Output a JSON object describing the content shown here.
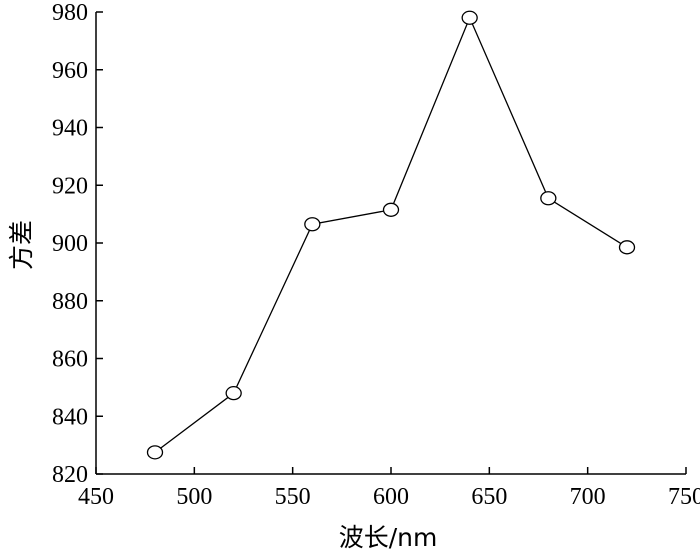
{
  "chart_data": {
    "type": "line",
    "xlabel": "波长/nm",
    "ylabel": "方差",
    "xlim": [
      450,
      750
    ],
    "ylim": [
      820,
      980
    ],
    "x_ticks": [
      450,
      500,
      550,
      600,
      650,
      700,
      750
    ],
    "y_ticks": [
      820,
      840,
      860,
      880,
      900,
      920,
      940,
      960,
      980
    ],
    "grid": false,
    "marker": "open-circle",
    "series": [
      {
        "x": [
          480,
          520,
          560,
          600,
          640,
          680,
          720
        ],
        "values": [
          827.5,
          848,
          906.5,
          911.5,
          978,
          915.5,
          898.5
        ]
      }
    ],
    "colors": {
      "line": "#000000",
      "axis": "#000000",
      "background": "#ffffff"
    }
  }
}
